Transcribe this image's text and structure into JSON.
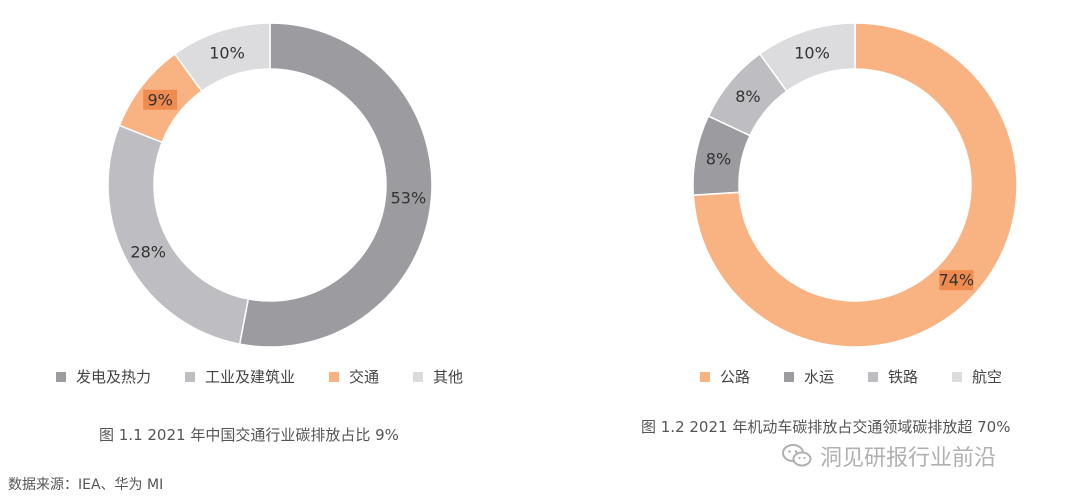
{
  "chart_data": [
    {
      "type": "pie",
      "donut": true,
      "title": "图 1.1 2021 年中国交通行业碳排放占比 9%",
      "categories": [
        "发电及热力",
        "工业及建筑业",
        "交通",
        "其他"
      ],
      "values": [
        53,
        28,
        9,
        10
      ],
      "labels": [
        "53%",
        "28%",
        "9%",
        "10%"
      ],
      "colors": [
        "#9c9ca0",
        "#bebec2",
        "#f9b382",
        "#dcdcdf"
      ],
      "highlight_index": 2,
      "legend_position": "bottom"
    },
    {
      "type": "pie",
      "donut": true,
      "title": "图 1.2 2021 年机动车碳排放占交通领域碳排放超 70%",
      "categories": [
        "公路",
        "水运",
        "铁路",
        "航空"
      ],
      "values": [
        74,
        8,
        8,
        10
      ],
      "labels": [
        "74%",
        "8%",
        "8%",
        "10%"
      ],
      "colors": [
        "#f9b382",
        "#9c9ca0",
        "#bebec2",
        "#dcdcdf"
      ],
      "highlight_index": 0,
      "legend_position": "bottom"
    }
  ],
  "source": "数据来源：IEA、华为 MI",
  "watermark": "洞见研报行业前沿",
  "icons": {
    "watermark_icon": "wechat-icon"
  },
  "colors": {
    "label_highlight": "#f08b4f"
  }
}
